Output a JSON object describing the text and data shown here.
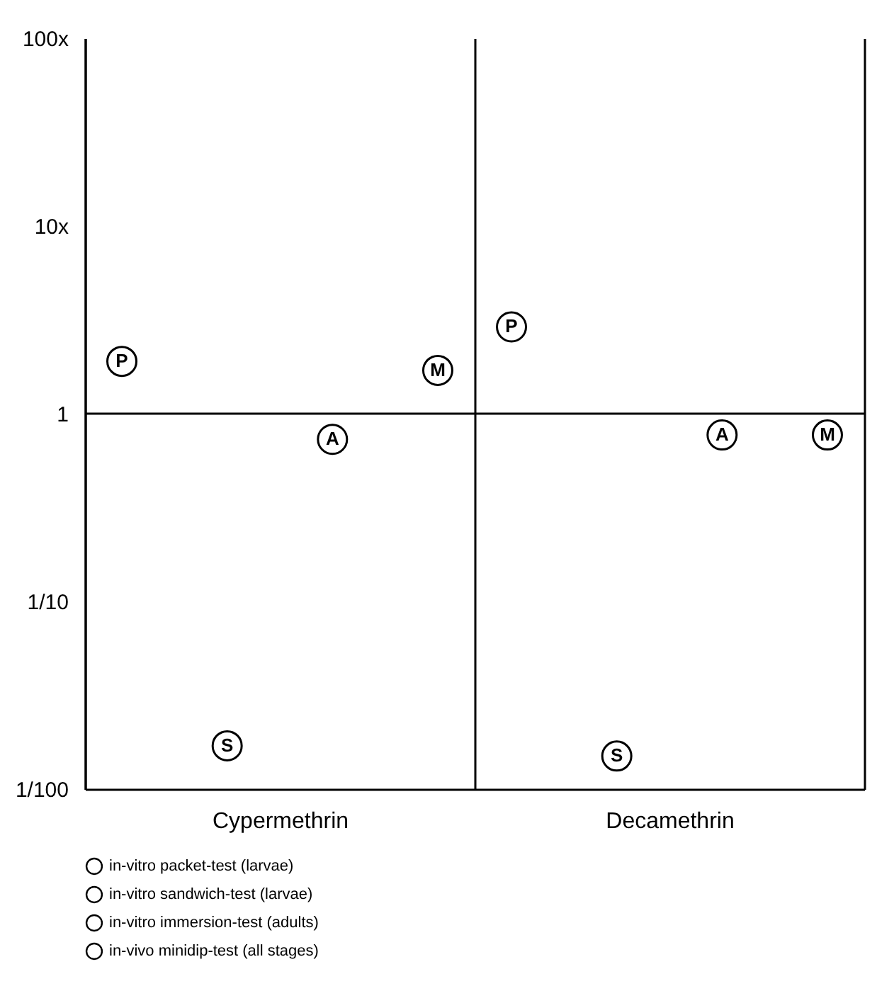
{
  "chart_data": {
    "type": "scatter",
    "categories": [
      "Cypermethrin",
      "Decamethrin"
    ],
    "series": [
      {
        "name": "in-vitro packet-test (larvae)",
        "color": "#000000",
        "values": [
          1.9,
          2.9
        ]
      },
      {
        "name": "in-vitro sandwich-test (larvae)",
        "color": "#000000",
        "values": [
          0.017,
          0.015
        ]
      },
      {
        "name": "in-vitro immersion-test (adults)",
        "color": "#000000",
        "values": [
          0.73,
          0.77
        ]
      },
      {
        "name": "in-vivo minidip-test (all stages)",
        "color": "#000000",
        "values": [
          1.7,
          0.77
        ]
      }
    ],
    "annotations": [
      "P",
      "S",
      "A",
      "M"
    ],
    "ylim": [
      0.01,
      100
    ],
    "yticks": [
      {
        "value": 100,
        "label": "100x"
      },
      {
        "value": 10,
        "label": "10x"
      },
      1,
      {
        "value": 0.1,
        "label": "1/10"
      },
      {
        "value": 0.01,
        "label": "1/100"
      }
    ],
    "log": "y",
    "grid": "x",
    "legend": "bottom",
    "marker": "circle",
    "ref_lines": [
      {
        "axis": "y",
        "value": 1
      }
    ]
  }
}
